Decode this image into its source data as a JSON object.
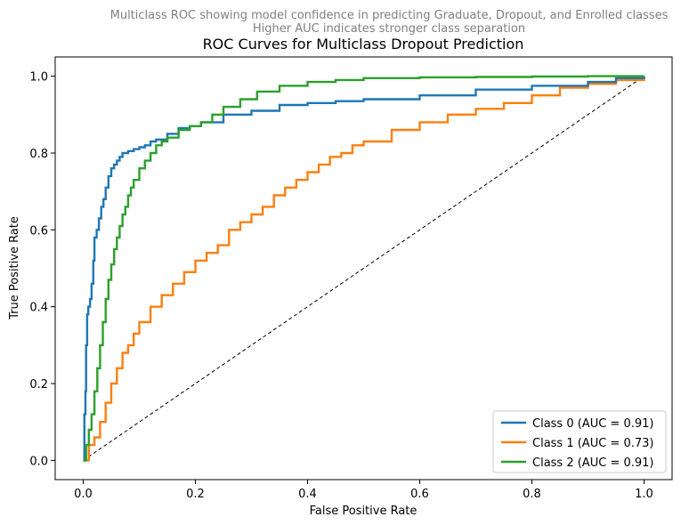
{
  "chart_data": {
    "type": "line",
    "subtitle": "Multiclass ROC showing model confidence in predicting Graduate, Dropout, and Enrolled classes\nHigher AUC indicates stronger class separation",
    "title": "ROC Curves for Multiclass Dropout Prediction",
    "xlabel": "False Positive Rate",
    "ylabel": "True Positive Rate",
    "xlim": [
      -0.05,
      1.05
    ],
    "ylim": [
      -0.05,
      1.05
    ],
    "xticks": [
      "0.0",
      "0.2",
      "0.4",
      "0.6",
      "0.8",
      "1.0"
    ],
    "yticks": [
      "0.0",
      "0.2",
      "0.4",
      "0.6",
      "0.8",
      "1.0"
    ],
    "grid": false,
    "legend_position": "lower-right",
    "series": [
      {
        "name": "Class 0 (AUC = 0.91)",
        "color": "#1f77b4",
        "x": [
          0,
          0.002,
          0.004,
          0.005,
          0.007,
          0.009,
          0.012,
          0.015,
          0.018,
          0.02,
          0.024,
          0.028,
          0.032,
          0.036,
          0.04,
          0.045,
          0.05,
          0.055,
          0.06,
          0.065,
          0.07,
          0.08,
          0.09,
          0.1,
          0.11,
          0.12,
          0.13,
          0.15,
          0.17,
          0.19,
          0.21,
          0.25,
          0.3,
          0.35,
          0.4,
          0.45,
          0.5,
          0.6,
          0.7,
          0.8,
          0.9,
          0.95,
          1.0
        ],
        "y": [
          0,
          0.12,
          0.18,
          0.3,
          0.38,
          0.4,
          0.42,
          0.46,
          0.52,
          0.58,
          0.6,
          0.63,
          0.66,
          0.68,
          0.71,
          0.74,
          0.76,
          0.77,
          0.78,
          0.79,
          0.8,
          0.805,
          0.81,
          0.815,
          0.82,
          0.83,
          0.835,
          0.85,
          0.865,
          0.87,
          0.88,
          0.9,
          0.91,
          0.925,
          0.93,
          0.935,
          0.94,
          0.95,
          0.965,
          0.975,
          0.985,
          0.995,
          1.0
        ]
      },
      {
        "name": "Class 1 (AUC = 0.73)",
        "color": "#ff7f0e",
        "x": [
          0,
          0.01,
          0.02,
          0.03,
          0.04,
          0.05,
          0.06,
          0.07,
          0.08,
          0.09,
          0.1,
          0.12,
          0.14,
          0.16,
          0.18,
          0.2,
          0.22,
          0.24,
          0.26,
          0.28,
          0.3,
          0.32,
          0.34,
          0.36,
          0.38,
          0.4,
          0.42,
          0.44,
          0.46,
          0.48,
          0.5,
          0.55,
          0.6,
          0.65,
          0.7,
          0.75,
          0.8,
          0.85,
          0.9,
          0.95,
          1.0
        ],
        "y": [
          0,
          0.04,
          0.06,
          0.1,
          0.15,
          0.2,
          0.24,
          0.28,
          0.3,
          0.33,
          0.36,
          0.4,
          0.43,
          0.46,
          0.49,
          0.52,
          0.54,
          0.56,
          0.6,
          0.62,
          0.64,
          0.66,
          0.69,
          0.71,
          0.73,
          0.75,
          0.77,
          0.79,
          0.8,
          0.82,
          0.83,
          0.86,
          0.88,
          0.9,
          0.915,
          0.93,
          0.95,
          0.97,
          0.98,
          0.99,
          1.0
        ]
      },
      {
        "name": "Class 2 (AUC = 0.91)",
        "color": "#2ca02c",
        "x": [
          0,
          0.005,
          0.01,
          0.015,
          0.02,
          0.025,
          0.03,
          0.035,
          0.04,
          0.045,
          0.05,
          0.055,
          0.06,
          0.065,
          0.07,
          0.075,
          0.08,
          0.085,
          0.09,
          0.1,
          0.11,
          0.12,
          0.13,
          0.14,
          0.15,
          0.17,
          0.19,
          0.21,
          0.23,
          0.25,
          0.28,
          0.31,
          0.35,
          0.4,
          0.45,
          0.5,
          0.6,
          0.7,
          0.8,
          0.9,
          1.0
        ],
        "y": [
          0,
          0.04,
          0.08,
          0.12,
          0.18,
          0.24,
          0.3,
          0.36,
          0.42,
          0.47,
          0.51,
          0.55,
          0.58,
          0.61,
          0.64,
          0.66,
          0.69,
          0.71,
          0.73,
          0.76,
          0.78,
          0.8,
          0.82,
          0.83,
          0.84,
          0.86,
          0.87,
          0.88,
          0.9,
          0.92,
          0.94,
          0.96,
          0.975,
          0.985,
          0.99,
          0.995,
          0.997,
          0.998,
          0.999,
          1.0,
          1.0
        ]
      }
    ],
    "reference_line": {
      "x": [
        0,
        1
      ],
      "y": [
        0,
        1
      ],
      "style": "dashed",
      "color": "#000000"
    }
  }
}
